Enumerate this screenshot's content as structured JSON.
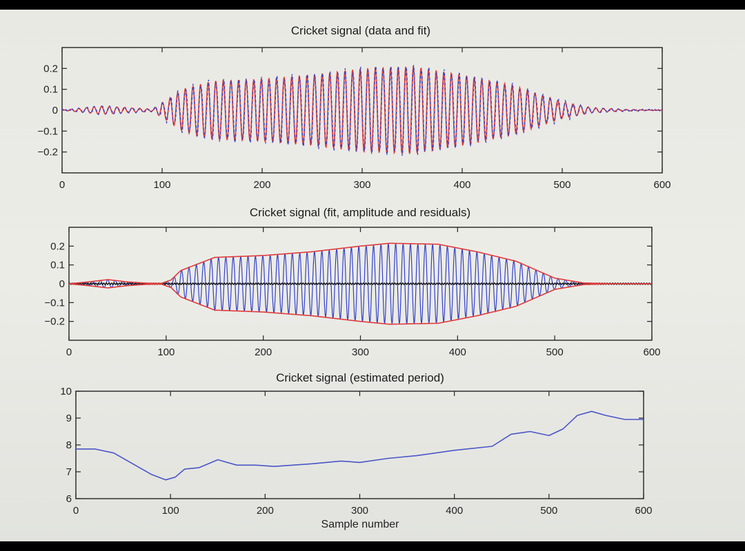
{
  "chart_data": [
    {
      "type": "line",
      "title": "Cricket signal (data and fit)",
      "xlim": [
        0,
        600
      ],
      "ylim": [
        -0.3,
        0.3
      ],
      "xticks": [
        0,
        100,
        200,
        300,
        400,
        500,
        600
      ],
      "yticks": [
        0.2,
        0.1,
        0,
        -0.1,
        -0.2
      ],
      "ytick_labels": [
        "0.2",
        "0.1",
        "0",
        "−0.1",
        "−0.2"
      ],
      "series": [
        {
          "color": "#3340c8",
          "role": "data"
        },
        {
          "color": "#e03a3a",
          "role": "fit"
        }
      ],
      "envelope": {
        "x": [
          0,
          40,
          90,
          105,
          120,
          150,
          200,
          250,
          300,
          350,
          400,
          450,
          500,
          530,
          560,
          600
        ],
        "amplitude": [
          0.0,
          0.02,
          0.005,
          0.05,
          0.1,
          0.14,
          0.15,
          0.17,
          0.2,
          0.21,
          0.17,
          0.12,
          0.04,
          0.012,
          0.004,
          0.0
        ]
      },
      "period": 7.6
    },
    {
      "type": "line",
      "title": "Cricket signal (fit, amplitude and residuals)",
      "xlim": [
        0,
        600
      ],
      "ylim": [
        -0.3,
        0.3
      ],
      "xticks": [
        0,
        100,
        200,
        300,
        400,
        500,
        600
      ],
      "yticks": [
        0.2,
        0.1,
        0,
        -0.1,
        -0.2
      ],
      "ytick_labels": [
        "0.2",
        "0.1",
        "0",
        "−0.1",
        "−0.2"
      ],
      "series": [
        {
          "color": "#3340c8",
          "role": "fit"
        },
        {
          "color": "#e03a3a",
          "role": "amplitude"
        },
        {
          "color": "#111111",
          "role": "residuals"
        }
      ],
      "envelope": {
        "x": [
          0,
          20,
          40,
          60,
          80,
          95,
          105,
          115,
          150,
          200,
          250,
          300,
          330,
          380,
          420,
          460,
          500,
          530,
          560,
          600
        ],
        "amplitude": [
          0.0,
          0.01,
          0.022,
          0.01,
          0.003,
          0.002,
          0.02,
          0.07,
          0.14,
          0.15,
          0.17,
          0.2,
          0.215,
          0.21,
          0.17,
          0.12,
          0.03,
          0.004,
          0.0,
          0.0
        ]
      },
      "period": 7.6
    },
    {
      "type": "line",
      "title": "Cricket signal (estimated period)",
      "xlabel": "Sample number",
      "xlim": [
        0,
        600
      ],
      "ylim": [
        6,
        10
      ],
      "xticks": [
        0,
        100,
        200,
        300,
        400,
        500,
        600
      ],
      "yticks": [
        10,
        9,
        8,
        7,
        6
      ],
      "ytick_labels": [
        "10",
        "9",
        "8",
        "7",
        "6"
      ],
      "series": [
        {
          "color": "#4a55c8",
          "x": [
            0,
            20,
            40,
            60,
            80,
            95,
            105,
            115,
            130,
            150,
            170,
            190,
            210,
            250,
            280,
            300,
            330,
            360,
            400,
            440,
            460,
            480,
            500,
            515,
            530,
            545,
            560,
            580,
            600
          ],
          "y": [
            7.85,
            7.85,
            7.7,
            7.3,
            6.9,
            6.7,
            6.8,
            7.1,
            7.15,
            7.45,
            7.25,
            7.25,
            7.2,
            7.3,
            7.4,
            7.35,
            7.5,
            7.6,
            7.8,
            7.95,
            8.4,
            8.5,
            8.35,
            8.6,
            9.1,
            9.25,
            9.1,
            8.95,
            8.95
          ]
        }
      ]
    }
  ]
}
